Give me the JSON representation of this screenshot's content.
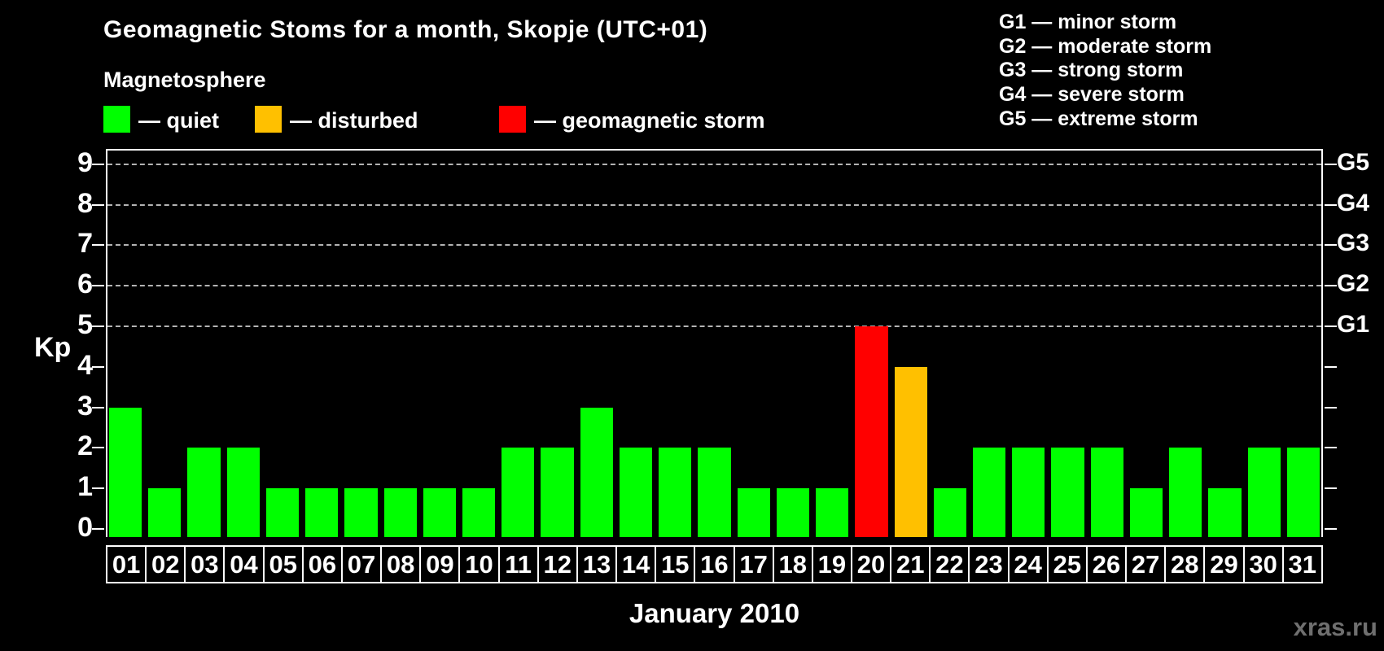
{
  "title": "Geomagnetic Stoms for a month, Skopje (UTC+01)",
  "subtitle": "Magnetosphere",
  "legend": {
    "items": [
      {
        "key": "quiet",
        "label": "— quiet"
      },
      {
        "key": "disturbed",
        "label": "— disturbed"
      },
      {
        "key": "storm",
        "label": "— geomagnetic storm"
      }
    ]
  },
  "g_legend": [
    "G1 — minor storm",
    "G2 — moderate storm",
    "G3 — strong storm",
    "G4 — severe storm",
    "G5 — extreme storm"
  ],
  "axes": {
    "y_label": "Kp",
    "y_ticks": [
      0,
      1,
      2,
      3,
      4,
      5,
      6,
      7,
      8,
      9
    ],
    "right_labels": [
      {
        "label": "G1",
        "value": 5
      },
      {
        "label": "G2",
        "value": 6
      },
      {
        "label": "G3",
        "value": 7
      },
      {
        "label": "G4",
        "value": 8
      },
      {
        "label": "G5",
        "value": 9
      }
    ],
    "x_label": "January 2010"
  },
  "watermark": "xras.ru",
  "theme": {
    "background": "#000000",
    "text": "#ffffff",
    "grid": "#b3b3b3",
    "watermark_color": "#6f6f6f"
  },
  "chart_data": {
    "type": "bar",
    "title": "Geomagnetic Stoms for a month, Skopje (UTC+01)",
    "xlabel": "January 2010",
    "ylabel": "Kp",
    "ylim": [
      0,
      9
    ],
    "grid": "dashed horizontal at Kp 5-9 (G1-G5)",
    "legend_position": "top-left",
    "categories": [
      "01",
      "02",
      "03",
      "04",
      "05",
      "06",
      "07",
      "08",
      "09",
      "10",
      "11",
      "12",
      "13",
      "14",
      "15",
      "16",
      "17",
      "18",
      "19",
      "20",
      "21",
      "22",
      "23",
      "24",
      "25",
      "26",
      "27",
      "28",
      "29",
      "30",
      "31"
    ],
    "values": [
      3,
      1,
      2,
      2,
      1,
      1,
      1,
      1,
      1,
      1,
      2,
      2,
      3,
      2,
      2,
      2,
      1,
      1,
      1,
      5,
      4,
      1,
      2,
      2,
      2,
      2,
      1,
      2,
      1,
      2,
      2
    ],
    "states": [
      "quiet",
      "quiet",
      "quiet",
      "quiet",
      "quiet",
      "quiet",
      "quiet",
      "quiet",
      "quiet",
      "quiet",
      "quiet",
      "quiet",
      "quiet",
      "quiet",
      "quiet",
      "quiet",
      "quiet",
      "quiet",
      "quiet",
      "storm",
      "disturbed",
      "quiet",
      "quiet",
      "quiet",
      "quiet",
      "quiet",
      "quiet",
      "quiet",
      "quiet",
      "quiet",
      "quiet"
    ],
    "colors": {
      "quiet": "#00ff00",
      "disturbed": "#ffc000",
      "storm": "#ff0000"
    },
    "gridlines": [
      5,
      6,
      7,
      8,
      9
    ]
  }
}
